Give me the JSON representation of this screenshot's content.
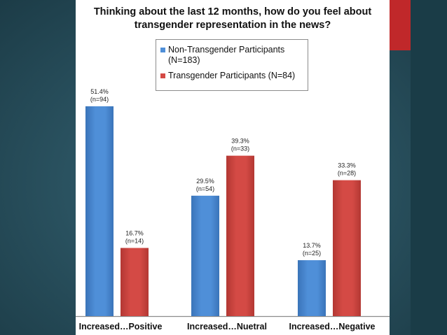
{
  "colors": {
    "non_trans": "#4f8fd8",
    "trans": "#d44a45",
    "accent": "#c0282a"
  },
  "chart_data": {
    "type": "bar",
    "title": "Thinking about the last 12 months, how do you feel about transgender representation in the news?",
    "title_lines": [
      "Thinking about the last 12 months, how do you feel about",
      "transgender representation in the news?"
    ],
    "categories": [
      "Increased…Positive",
      "Increased…Nuetral",
      "Increased…Negative"
    ],
    "ylim": [
      0,
      60
    ],
    "grid": false,
    "legend_position": "top-center",
    "series": [
      {
        "name": "Non-Transgender Participants (N=183)",
        "legend_lines": [
          "Non-Transgender Participants",
          "(N=183)"
        ],
        "values": [
          51.4,
          29.5,
          13.7
        ],
        "labels": [
          "51.4%",
          "29.5%",
          "13.7%"
        ],
        "counts": [
          "(n=94)",
          "(n=54)",
          "(n=25)"
        ]
      },
      {
        "name": "Transgender Participants (N=84)",
        "legend_lines": [
          "Transgender Participants (N=84)"
        ],
        "values": [
          16.7,
          39.3,
          33.3
        ],
        "labels": [
          "16.7%",
          "39.3%",
          "33.3%"
        ],
        "counts": [
          "(n=14)",
          "(n=33)",
          "(n=28)"
        ]
      }
    ]
  }
}
